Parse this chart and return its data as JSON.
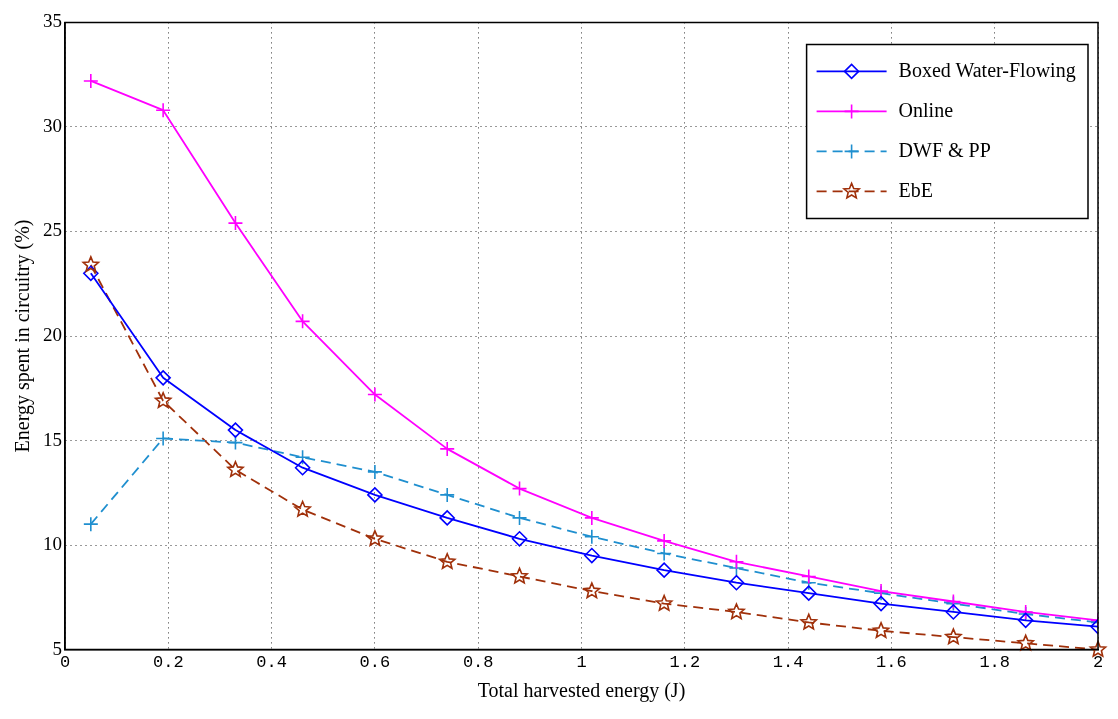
{
  "chart_data": {
    "type": "line",
    "xlabel": "Total harvested energy (J)",
    "ylabel": "Energy spent in circuitry (%)",
    "x": [
      0.05,
      0.19,
      0.33,
      0.46,
      0.6,
      0.74,
      0.88,
      1.02,
      1.16,
      1.3,
      1.44,
      1.58,
      1.72,
      1.86,
      2.0
    ],
    "series": [
      {
        "name": "Boxed Water-Flowing",
        "color": "#0000ff",
        "marker": "diamond",
        "line_style": "solid",
        "values": [
          23.0,
          18.0,
          15.5,
          13.7,
          12.4,
          11.3,
          10.3,
          9.5,
          8.8,
          8.2,
          7.7,
          7.2,
          6.8,
          6.4,
          6.1
        ]
      },
      {
        "name": "Online",
        "color": "#ff00ff",
        "marker": "cross",
        "line_style": "solid",
        "values": [
          32.2,
          30.8,
          25.4,
          20.7,
          17.2,
          14.6,
          12.7,
          11.3,
          10.2,
          9.2,
          8.5,
          7.8,
          7.3,
          6.8,
          6.4
        ]
      },
      {
        "name": "DWF & PP",
        "color": "#1f8fcf",
        "marker": "cross",
        "line_style": "dashed",
        "values": [
          11.0,
          15.1,
          14.9,
          14.2,
          13.5,
          12.4,
          11.3,
          10.4,
          9.6,
          8.9,
          8.2,
          7.7,
          7.2,
          6.7,
          6.3
        ]
      },
      {
        "name": "EbE",
        "color": "#a0300a",
        "marker": "star",
        "line_style": "dashed",
        "values": [
          23.4,
          16.9,
          13.6,
          11.7,
          10.3,
          9.2,
          8.5,
          7.8,
          7.2,
          6.8,
          6.3,
          5.9,
          5.6,
          5.3,
          5.0
        ]
      }
    ],
    "xlim": [
      0,
      2
    ],
    "xticks": [
      0,
      0.2,
      0.4,
      0.6,
      0.8,
      1,
      1.2,
      1.4,
      1.6,
      1.8,
      2
    ],
    "ylim": [
      5,
      35
    ],
    "yticks": [
      5,
      10,
      15,
      20,
      25,
      30,
      35
    ],
    "grid": true,
    "legend": "top right"
  }
}
